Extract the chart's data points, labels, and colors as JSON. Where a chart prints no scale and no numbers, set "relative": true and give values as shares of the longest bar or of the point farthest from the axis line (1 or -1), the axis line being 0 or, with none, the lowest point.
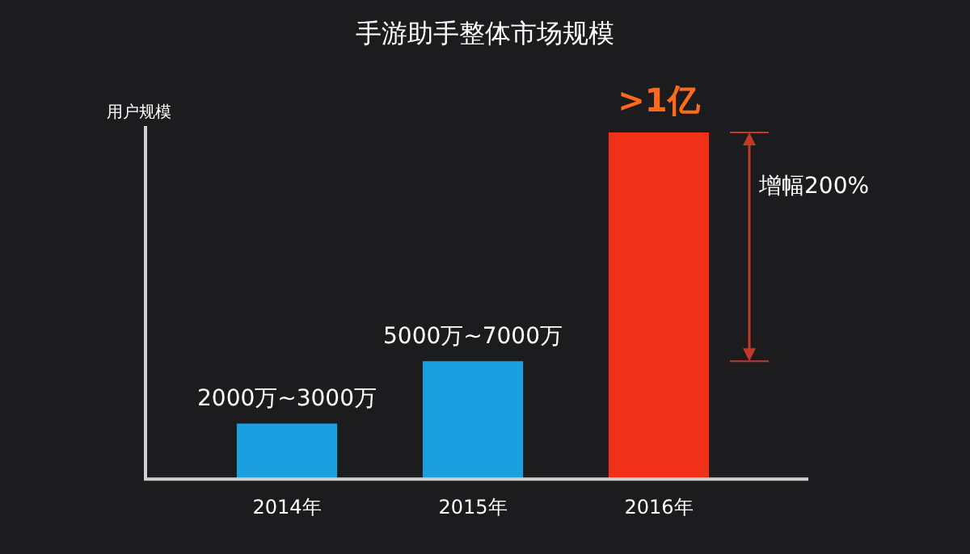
{
  "chart_data": {
    "type": "bar",
    "title": "手游助手整体市场规模",
    "ylabel": "用户规模",
    "categories": [
      "2014年",
      "2015年",
      "2016年"
    ],
    "values": [
      0.16,
      0.34,
      1
    ],
    "colors": [
      "#1a9fe0",
      "#1a9fe0",
      "#f03018"
    ],
    "relative": true,
    "annotations": [
      "2000万~3000万",
      "5000万~7000万",
      ">1亿",
      "增幅200%"
    ]
  }
}
